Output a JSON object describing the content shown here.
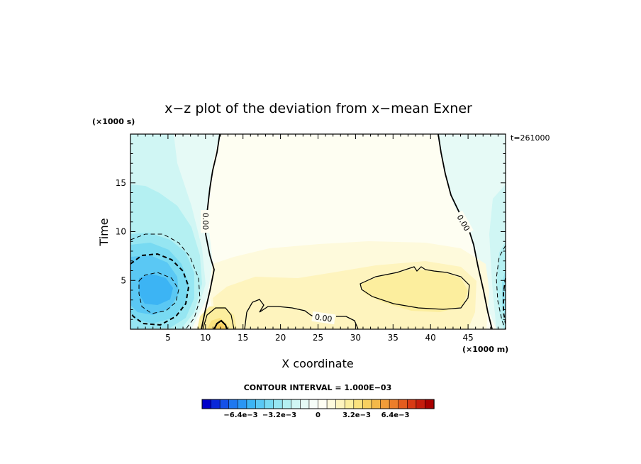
{
  "chart_data": {
    "type": "heatmap",
    "title": "x−z plot of the deviation from x−mean Exner",
    "xlabel": "X coordinate",
    "ylabel": "Time",
    "x_unit": "(×1000 m)",
    "y_unit": "(×1000 s)",
    "time_stamp": "t=261000",
    "xlim": [
      0,
      50
    ],
    "ylim": [
      0,
      20
    ],
    "x_ticks": [
      "5",
      "10",
      "15",
      "20",
      "25",
      "30",
      "35",
      "40",
      "45"
    ],
    "y_ticks": [
      "5",
      "10",
      "15"
    ],
    "contour_interval": "CONTOUR INTERVAL = 1.000E−03",
    "contour_labels": [
      "0.00",
      "0.00",
      "0.00"
    ],
    "colorbar": {
      "tick_labels": [
        "−6.4e−3",
        "−3.2e−3",
        "0",
        "3.2e−3",
        "6.4e−3"
      ],
      "tick_values": [
        -0.0064,
        -0.0032,
        0,
        0.0032,
        0.0064
      ],
      "range": [
        -0.0096,
        0.0096
      ],
      "colors": [
        "#0000c8",
        "#0a28d8",
        "#1450e8",
        "#1e78f0",
        "#2a96f4",
        "#3cb4f4",
        "#5ac8f4",
        "#78daf2",
        "#96e6f2",
        "#b4f0f2",
        "#d0f6f4",
        "#e6faf6",
        "#f6fdf8",
        "#fefef2",
        "#fefadc",
        "#fef4be",
        "#fcee9e",
        "#fae27e",
        "#f8d060",
        "#f4b848",
        "#f09c38",
        "#ec7e2a",
        "#e45c1e",
        "#d83a14",
        "#c41c0c",
        "#a80000"
      ]
    },
    "field_features": [
      {
        "kind": "minimum",
        "x": 3.8,
        "y": 4.1,
        "value": -0.0045
      },
      {
        "kind": "minimum",
        "x": 49.5,
        "y": 5,
        "value": -0.002
      },
      {
        "kind": "maximum",
        "x": 11.5,
        "y": 0.5,
        "value": 0.0015
      },
      {
        "kind": "maximum",
        "x": 38,
        "y": 4,
        "value": 0.0011
      }
    ]
  }
}
